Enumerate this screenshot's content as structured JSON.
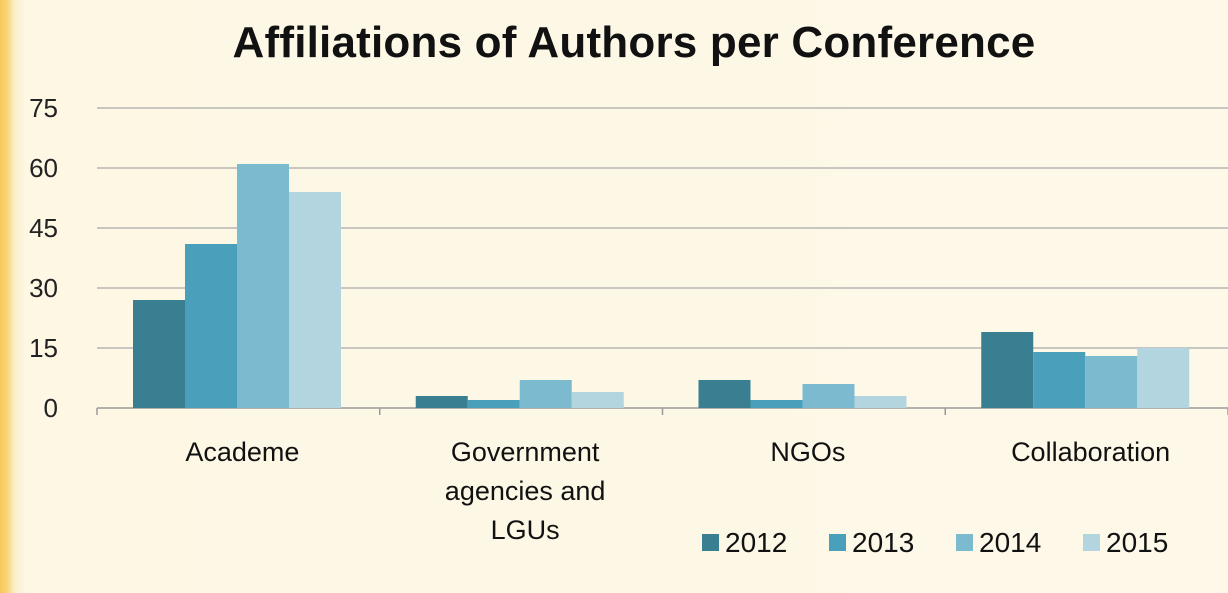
{
  "chart_data": {
    "type": "bar",
    "title": "Affiliations of Authors per Conference",
    "categories": [
      "Academe",
      "Government agencies and LGUs",
      "NGOs",
      "Collaboration"
    ],
    "category_lines": [
      [
        "Academe"
      ],
      [
        "Government",
        "agencies and",
        "LGUs"
      ],
      [
        "NGOs"
      ],
      [
        "Collaboration"
      ]
    ],
    "series": [
      {
        "name": "2012",
        "values": [
          27,
          3,
          7,
          19
        ],
        "color": "#3a7f91"
      },
      {
        "name": "2013",
        "values": [
          41,
          2,
          2,
          14
        ],
        "color": "#4aa0bb"
      },
      {
        "name": "2014",
        "values": [
          61,
          7,
          6,
          13
        ],
        "color": "#7cbad0"
      },
      {
        "name": "2015",
        "values": [
          54,
          4,
          3,
          15
        ],
        "color": "#b3d5e0"
      }
    ],
    "ylim": [
      0,
      75
    ],
    "yticks": [
      "0",
      "15",
      "30",
      "45",
      "60",
      "75"
    ],
    "grid": true,
    "legend": "bottom-right"
  }
}
